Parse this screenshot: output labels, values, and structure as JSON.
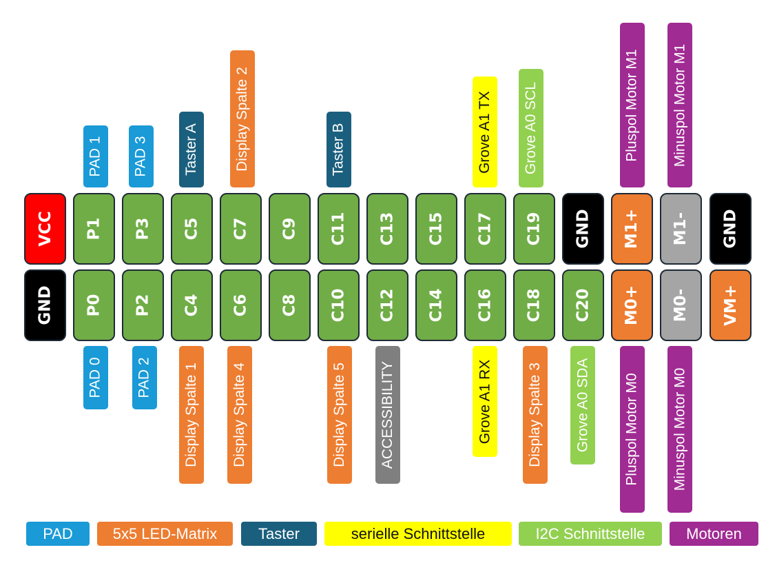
{
  "colors": {
    "pin_green": "#70ad47",
    "vcc_red": "#ff0000",
    "gnd_black": "#000000",
    "motor_orange": "#ed7d31",
    "motor_grey": "#a5a5a5",
    "pad_blue": "#1a9ad6",
    "led_orange": "#ed7d31",
    "taster_navy": "#1b5f7e",
    "serial_yellow": "#ffff00",
    "i2c_green": "#92d050",
    "motor_purple": "#a02b93",
    "access_grey": "#7f7f7f"
  },
  "top_row": [
    "VCC",
    "P1",
    "P3",
    "C5",
    "C7",
    "C9",
    "C11",
    "C13",
    "C15",
    "C17",
    "C19",
    "GND",
    "M1+",
    "M1-",
    "GND"
  ],
  "bottom_row": [
    "GND",
    "P0",
    "P2",
    "C4",
    "C6",
    "C8",
    "C10",
    "C12",
    "C14",
    "C16",
    "C18",
    "C20",
    "M0+",
    "M0-",
    "VM+"
  ],
  "top_labels": [
    "PAD 1",
    "PAD 3",
    "Taster A",
    "Display Spalte 2",
    "Taster B",
    "Grove A1 TX",
    "Grove A0 SCL",
    "Pluspol Motor M1",
    "Minuspol Motor M1"
  ],
  "bottom_labels": [
    "PAD 0",
    "PAD 2",
    "Display Spalte 1",
    "Display Spalte 4",
    "Display Spalte 5",
    "ACCESSIBILITY",
    "Grove A1 RX",
    "Display Spalte 3",
    "Grove A0 SDA",
    "Pluspol Motor M0",
    "Minuspol Motor M0"
  ],
  "legend": [
    "PAD",
    "5x5 LED-Matrix",
    "Taster",
    "serielle Schnittstelle",
    "I2C Schnittstelle",
    "Motoren"
  ]
}
